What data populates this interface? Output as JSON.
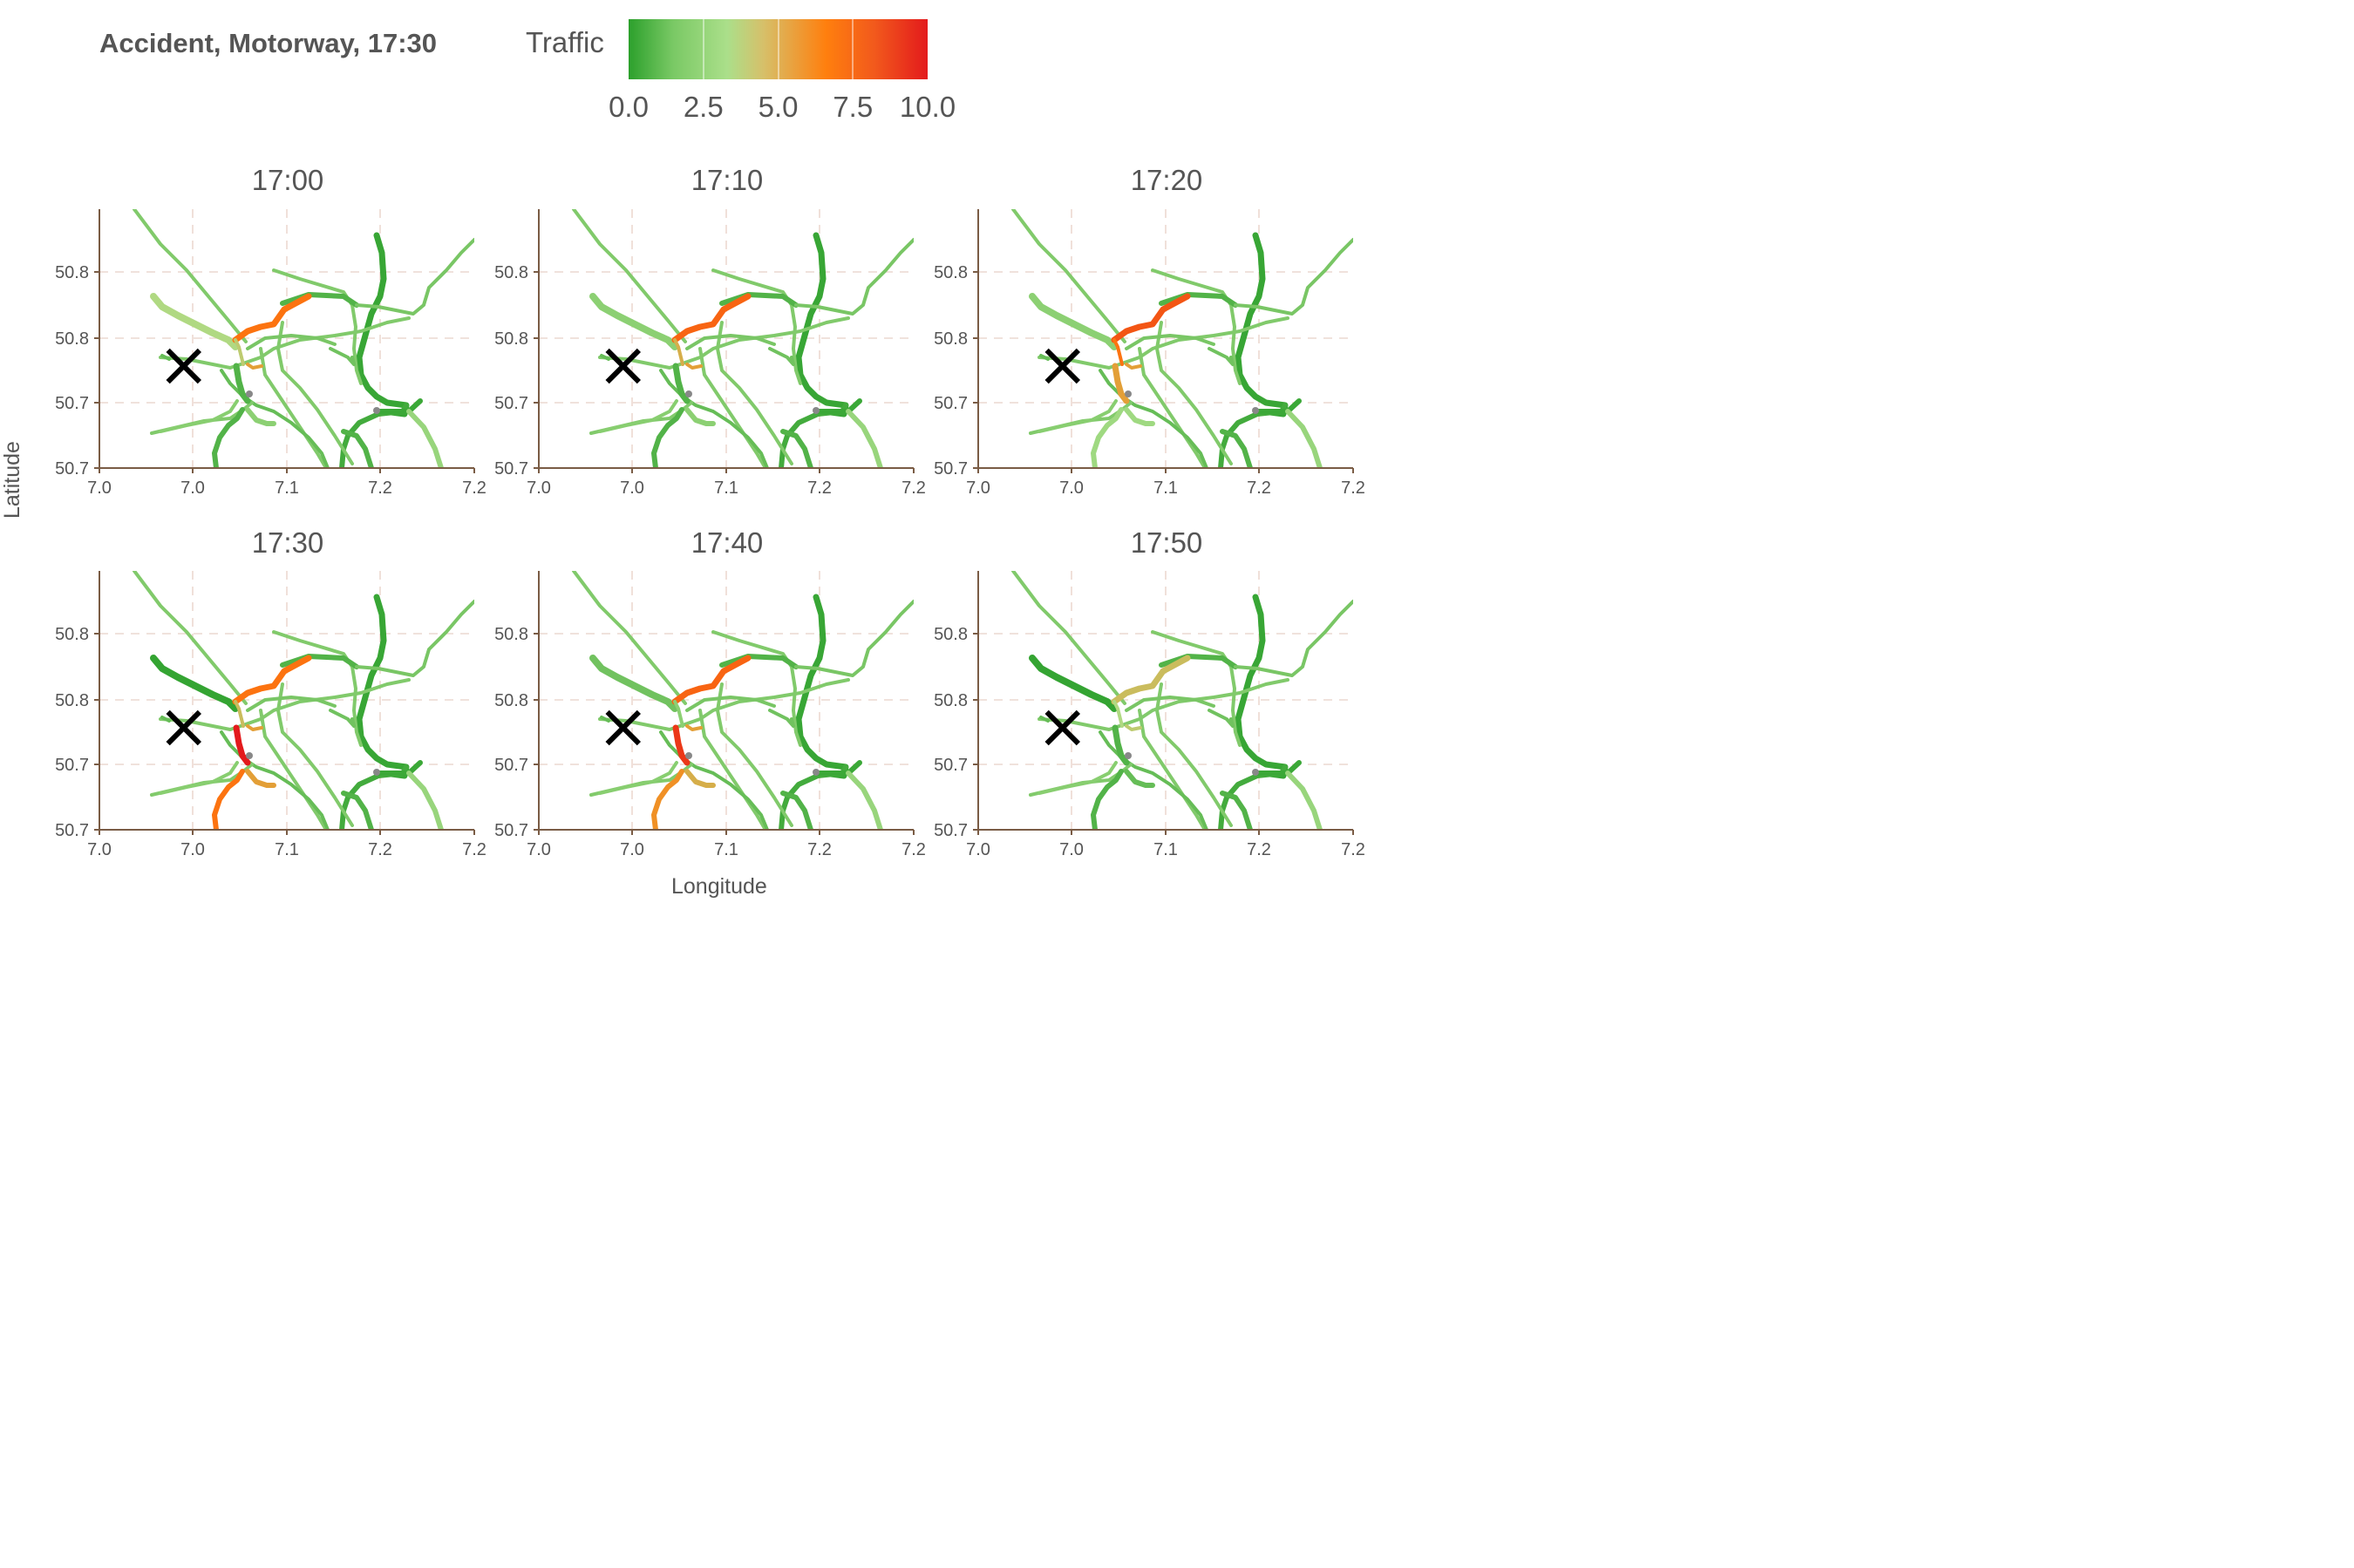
{
  "title": "Accident, Motorway, 17:30",
  "legend": {
    "title": "Traffic",
    "range": [
      0.0,
      10.0
    ],
    "ticks": [
      "0.0",
      "2.5",
      "5.0",
      "7.5",
      "10.0"
    ],
    "colors": [
      "#2ca02c",
      "#abdf8a",
      "#ff7f0e",
      "#e31a1c"
    ]
  },
  "axes": {
    "x_label": "Longitude",
    "y_label": "Latitude",
    "x_ticks": [
      "7.0",
      "7.0",
      "7.1",
      "7.1",
      "7.2",
      "7.2"
    ],
    "y_ticks": [
      "50.8",
      "50.8",
      "50.7",
      "50.7"
    ],
    "x_range": [
      7.0,
      7.2
    ],
    "grid": "dashed"
  },
  "accident_marker": {
    "symbol": "X",
    "lon": 7.045,
    "lat": 50.73
  },
  "panels": [
    {
      "time": "17:00",
      "traffic": {
        "nw": 3.5,
        "ne": 7.0,
        "nec": 4.0,
        "s1": 1.0,
        "s2": 1.0,
        "sw": 2.5,
        "mid": 5.5
      }
    },
    {
      "time": "17:10",
      "traffic": {
        "nw": 2.5,
        "ne": 7.5,
        "nec": 5.0,
        "s1": 1.0,
        "s2": 1.0,
        "sw": 2.5,
        "mid": 5.5
      }
    },
    {
      "time": "17:20",
      "traffic": {
        "nw": 2.5,
        "ne": 8.0,
        "nec": 7.0,
        "s1": 5.5,
        "s2": 3.0,
        "sw": 3.0,
        "mid": 5.5
      }
    },
    {
      "time": "17:30",
      "traffic": {
        "nw": 0.2,
        "ne": 7.0,
        "nec": 4.5,
        "s1": 10.0,
        "s2": 7.0,
        "sw": 5.5,
        "mid": 5.5
      }
    },
    {
      "time": "17:40",
      "traffic": {
        "nw": 1.8,
        "ne": 7.5,
        "nec": 2.5,
        "s1": 9.0,
        "s2": 6.0,
        "sw": 5.0,
        "mid": 5.5
      }
    },
    {
      "time": "17:50",
      "traffic": {
        "nw": 0.2,
        "ne": 4.5,
        "nec": 3.5,
        "s1": 1.0,
        "s2": 1.0,
        "sw": 1.5,
        "mid": 4.0
      }
    }
  ]
}
